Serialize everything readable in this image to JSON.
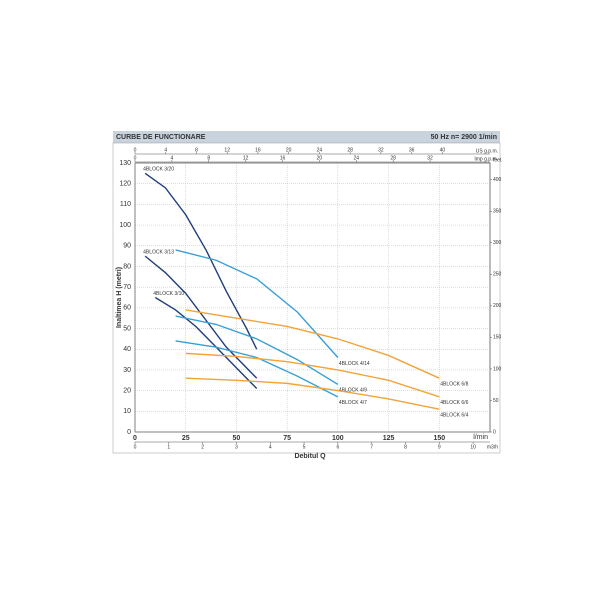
{
  "chart_data": {
    "type": "line",
    "title": "CURBE DE FUNCTIONARE",
    "subtitle": "50 Hz   n= 2900  1/min",
    "xlabel": "Debitul Q",
    "ylabel": "Inaltimea H (metri)",
    "xunit": "l/min",
    "xlim": [
      0,
      175
    ],
    "ylim": [
      0,
      130
    ],
    "xticks": [
      0,
      25,
      50,
      75,
      100,
      125,
      150
    ],
    "yticks": [
      0,
      10,
      20,
      30,
      40,
      50,
      60,
      70,
      80,
      90,
      100,
      110,
      120,
      130
    ],
    "grid": true,
    "extra_axes": [
      {
        "label": "US g.p.m.",
        "position": "top",
        "lim": [
          0,
          46.2
        ],
        "ticks": [
          0,
          4,
          8,
          12,
          16,
          20,
          24,
          28,
          32,
          36,
          40
        ]
      },
      {
        "label": "Imp g.p.m.",
        "position": "top",
        "lim": [
          0,
          38.5
        ],
        "ticks": [
          0,
          4,
          8,
          12,
          16,
          20,
          24,
          28,
          32
        ]
      },
      {
        "label": "feet",
        "position": "right",
        "lim": [
          0,
          426.5
        ],
        "ticks": [
          0,
          50,
          100,
          150,
          200,
          250,
          300,
          350,
          400
        ]
      },
      {
        "label": "m3/h",
        "position": "bottom",
        "lim": [
          0,
          10.5
        ],
        "ticks": [
          0,
          1,
          2,
          3,
          4,
          5,
          6,
          7,
          8,
          9,
          10
        ]
      }
    ],
    "series": [
      {
        "name": "4BLOCK 3/20",
        "color": "#1f3e7a",
        "x": [
          5,
          15,
          25,
          35,
          45,
          55,
          60
        ],
        "values": [
          125,
          118,
          105,
          88,
          68,
          50,
          40
        ]
      },
      {
        "name": "4BLOCK 3/13",
        "color": "#1f3e7a",
        "x": [
          5,
          15,
          25,
          35,
          45,
          55,
          60
        ],
        "values": [
          85,
          77,
          67,
          54,
          41,
          31,
          26
        ]
      },
      {
        "name": "4BLOCK 3/10",
        "color": "#1f3e7a",
        "x": [
          10,
          20,
          30,
          40,
          50,
          60
        ],
        "values": [
          65,
          59,
          51,
          41,
          31,
          21
        ]
      },
      {
        "name": "4BLOCK 4/14",
        "color": "#3a9fd6",
        "x": [
          20,
          40,
          60,
          80,
          100
        ],
        "values": [
          88,
          83,
          74,
          58,
          36
        ]
      },
      {
        "name": "4BLOCK 4/9",
        "color": "#3a9fd6",
        "x": [
          20,
          40,
          60,
          80,
          100
        ],
        "values": [
          56,
          52,
          45,
          35,
          23
        ]
      },
      {
        "name": "4BLOCK 4/7",
        "color": "#3a9fd6",
        "x": [
          20,
          40,
          60,
          80,
          100
        ],
        "values": [
          44,
          41,
          36,
          27,
          17
        ]
      },
      {
        "name": "4BLOCK 6/8",
        "color": "#f2a33a",
        "x": [
          25,
          50,
          75,
          100,
          125,
          150
        ],
        "values": [
          59,
          55,
          51,
          45,
          37,
          26
        ]
      },
      {
        "name": "4BLOCK 6/6",
        "color": "#f2a33a",
        "x": [
          25,
          50,
          75,
          100,
          125,
          150
        ],
        "values": [
          38,
          36.5,
          34,
          30,
          25,
          17
        ]
      },
      {
        "name": "4BLOCK 6/4",
        "color": "#f2a33a",
        "x": [
          25,
          50,
          75,
          100,
          125,
          150
        ],
        "values": [
          26,
          25,
          23.5,
          20,
          16,
          11
        ]
      }
    ]
  }
}
